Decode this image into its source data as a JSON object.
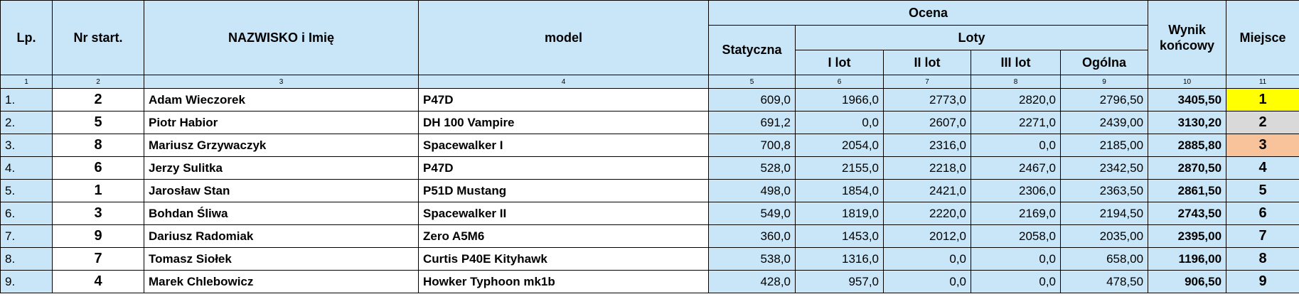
{
  "header": {
    "lp": "Lp.",
    "nr": "Nr start.",
    "name": "NAZWISKO i Imię",
    "model": "model",
    "ocena": "Ocena",
    "statyczna": "Statyczna",
    "loty": "Loty",
    "lot1": "I lot",
    "lot2": "II lot",
    "lot3": "III lot",
    "ogolna": "Ogólna",
    "wynik": "Wynik końcowy",
    "miejsce": "Miejsce"
  },
  "column_numbers": [
    "1",
    "2",
    "3",
    "4",
    "5",
    "6",
    "7",
    "8",
    "9",
    "10",
    "11"
  ],
  "rows": [
    [
      "1.",
      "2",
      "Adam Wieczorek",
      "P47D",
      "609,0",
      "1966,0",
      "2773,0",
      "2820,0",
      "2796,50",
      "3405,50",
      "1"
    ],
    [
      "2.",
      "5",
      "Piotr Habior",
      "DH 100 Vampire",
      "691,2",
      "0,0",
      "2607,0",
      "2271,0",
      "2439,00",
      "3130,20",
      "2"
    ],
    [
      "3.",
      "8",
      "Mariusz Grzywaczyk",
      "Spacewalker I",
      "700,8",
      "2054,0",
      "2316,0",
      "0,0",
      "2185,00",
      "2885,80",
      "3"
    ],
    [
      "4.",
      "6",
      "Jerzy Sulitka",
      "P47D",
      "528,0",
      "2155,0",
      "2218,0",
      "2467,0",
      "2342,50",
      "2870,50",
      "4"
    ],
    [
      "5.",
      "1",
      "Jarosław Stan",
      "P51D Mustang",
      "498,0",
      "1854,0",
      "2421,0",
      "2306,0",
      "2363,50",
      "2861,50",
      "5"
    ],
    [
      "6.",
      "3",
      "Bohdan Śliwa",
      "Spacewalker II",
      "549,0",
      "1819,0",
      "2220,0",
      "2169,0",
      "2194,50",
      "2743,50",
      "6"
    ],
    [
      "7.",
      "9",
      "Dariusz Radomiak",
      "Zero A5M6",
      "360,0",
      "1453,0",
      "2012,0",
      "2058,0",
      "2035,00",
      "2395,00",
      "7"
    ],
    [
      "8.",
      "7",
      "Tomasz Siołek",
      "Curtis P40E Kityhawk",
      "538,0",
      "1316,0",
      "0,0",
      "0,0",
      "658,00",
      "1196,00",
      "8"
    ],
    [
      "9.",
      "4",
      "Marek Chlebowicz",
      "Howker Typhoon mk1b",
      "428,0",
      "957,0",
      "0,0",
      "0,0",
      "478,50",
      "906,50",
      "9"
    ]
  ]
}
